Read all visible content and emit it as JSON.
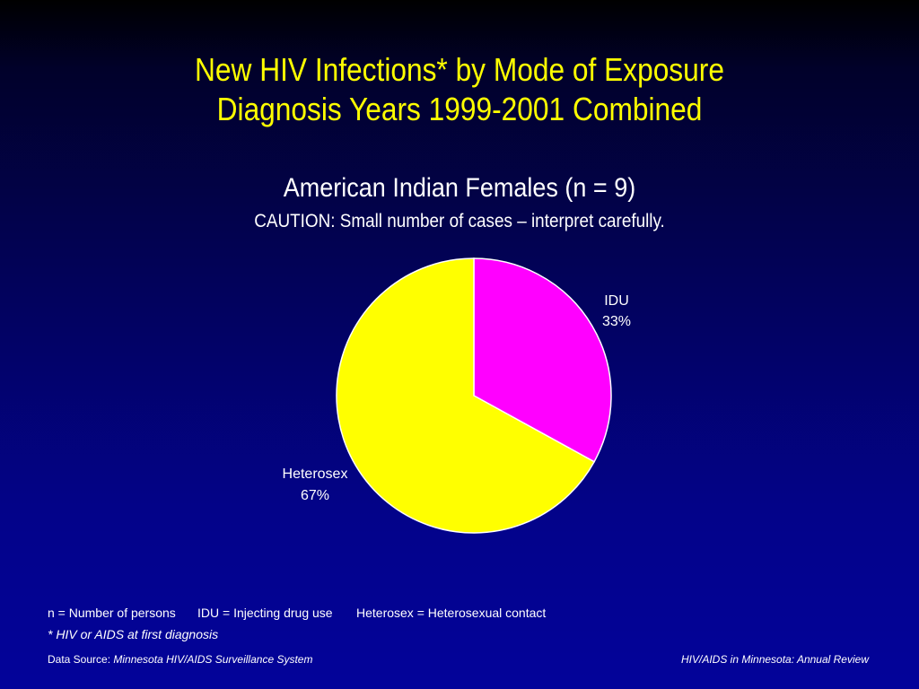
{
  "slide": {
    "title_line1": "New HIV Infections* by Mode of Exposure",
    "title_line2": "Diagnosis Years 1999-2001 Combined",
    "subtitle": "American Indian Females (n = 9)",
    "caution": "CAUTION: Small number of cases – interpret carefully.",
    "notes": [
      "n = Number of persons",
      "IDU = Injecting drug use",
      "Heterosex = Heterosexual contact"
    ],
    "footnote": "* HIV or AIDS at first diagnosis",
    "source_prefix": "Data Source: ",
    "source_name": "Minnesota HIV/AIDS Surveillance System",
    "report_name": "HIV/AIDS in Minnesota: Annual Review"
  },
  "chart_data": {
    "type": "pie",
    "title": "New HIV Infections* by Mode of Exposure Diagnosis Years 1999-2001 Combined",
    "subtitle": "American Indian Females (n = 9)",
    "slices": [
      {
        "label": "IDU",
        "value": 33,
        "display": "33%",
        "color": "#ff00ff"
      },
      {
        "label": "Heterosex",
        "value": 67,
        "display": "67%",
        "color": "#ffff00"
      }
    ],
    "start_angle_deg": 0,
    "direction": "clockwise"
  },
  "colors": {
    "title": "#ffff00",
    "text": "#ffffff",
    "background_top": "#000000",
    "background_bottom": "#03039a"
  }
}
